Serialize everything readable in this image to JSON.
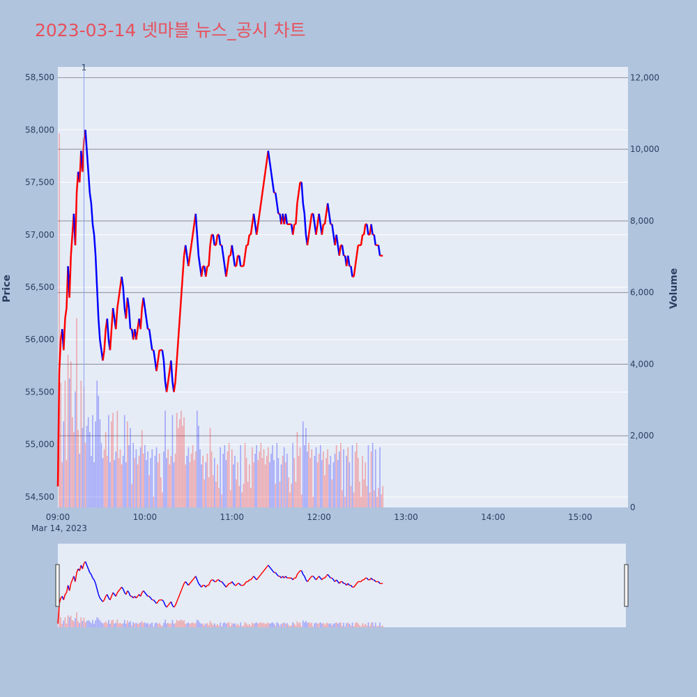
{
  "title": "2023-03-14 넷마블 뉴스_공시 차트",
  "colors": {
    "up": "#ff0000",
    "down": "#0000ff",
    "plot_bg": "#e5ecf6",
    "page_bg": "#b0c4de",
    "title": "#e8505b"
  },
  "chart_data": {
    "type": "line",
    "title": "2023-03-14 넷마블 뉴스_공시 차트",
    "ylabel": "Price",
    "y2label": "Volume",
    "date_label": "Mar 14, 2023",
    "x_ticks": [
      "09:00",
      "10:00",
      "11:00",
      "12:00",
      "13:00",
      "14:00",
      "15:00"
    ],
    "x_range": [
      "09:00",
      "15:33"
    ],
    "y_ticks": [
      "54,500",
      "55,000",
      "55,500",
      "56,000",
      "56,500",
      "57,000",
      "57,500",
      "58,000",
      "58,500"
    ],
    "y_tick_values": [
      54500,
      55000,
      55500,
      56000,
      56500,
      57000,
      57500,
      58000,
      58500
    ],
    "ylim": [
      54400,
      58600
    ],
    "y2_ticks": [
      "0",
      "2,000",
      "4,000",
      "6,000",
      "8,000",
      "10,000",
      "12,000"
    ],
    "y2_tick_values": [
      0,
      2000,
      4000,
      6000,
      8000,
      10000,
      12000
    ],
    "y2lim": [
      0,
      12300
    ],
    "annotation": {
      "label": "1",
      "time": "09:18"
    },
    "price_series": [
      [
        "09:00",
        54600
      ],
      [
        "09:01",
        55700
      ],
      [
        "09:02",
        56000
      ],
      [
        "09:03",
        56100
      ],
      [
        "09:04",
        55900
      ],
      [
        "09:05",
        56200
      ],
      [
        "09:06",
        56300
      ],
      [
        "09:07",
        56700
      ],
      [
        "09:08",
        56400
      ],
      [
        "09:09",
        56800
      ],
      [
        "09:10",
        57000
      ],
      [
        "09:11",
        57200
      ],
      [
        "09:12",
        56900
      ],
      [
        "09:13",
        57400
      ],
      [
        "09:14",
        57600
      ],
      [
        "09:15",
        57500
      ],
      [
        "09:16",
        57800
      ],
      [
        "09:17",
        57600
      ],
      [
        "09:18",
        57900
      ],
      [
        "09:19",
        58000
      ],
      [
        "09:20",
        57800
      ],
      [
        "09:21",
        57600
      ],
      [
        "09:22",
        57400
      ],
      [
        "09:23",
        57300
      ],
      [
        "09:24",
        57100
      ],
      [
        "09:25",
        57000
      ],
      [
        "09:26",
        56800
      ],
      [
        "09:27",
        56500
      ],
      [
        "09:28",
        56200
      ],
      [
        "09:29",
        56000
      ],
      [
        "09:30",
        55900
      ],
      [
        "09:31",
        55800
      ],
      [
        "09:32",
        55900
      ],
      [
        "09:33",
        56100
      ],
      [
        "09:34",
        56200
      ],
      [
        "09:35",
        56000
      ],
      [
        "09:36",
        55900
      ],
      [
        "09:37",
        56100
      ],
      [
        "09:38",
        56300
      ],
      [
        "09:39",
        56200
      ],
      [
        "09:40",
        56100
      ],
      [
        "09:41",
        56300
      ],
      [
        "09:42",
        56400
      ],
      [
        "09:43",
        56500
      ],
      [
        "09:44",
        56600
      ],
      [
        "09:45",
        56500
      ],
      [
        "09:46",
        56300
      ],
      [
        "09:47",
        56200
      ],
      [
        "09:48",
        56400
      ],
      [
        "09:49",
        56300
      ],
      [
        "09:50",
        56100
      ],
      [
        "09:51",
        56100
      ],
      [
        "09:52",
        56000
      ],
      [
        "09:53",
        56100
      ],
      [
        "09:54",
        56000
      ],
      [
        "09:55",
        56100
      ],
      [
        "09:56",
        56200
      ],
      [
        "09:57",
        56100
      ],
      [
        "09:58",
        56300
      ],
      [
        "09:59",
        56400
      ],
      [
        "10:00",
        56300
      ],
      [
        "10:01",
        56200
      ],
      [
        "10:02",
        56100
      ],
      [
        "10:03",
        56100
      ],
      [
        "10:04",
        56000
      ],
      [
        "10:05",
        55900
      ],
      [
        "10:06",
        55900
      ],
      [
        "10:07",
        55800
      ],
      [
        "10:08",
        55700
      ],
      [
        "10:09",
        55800
      ],
      [
        "10:10",
        55900
      ],
      [
        "10:11",
        55900
      ],
      [
        "10:12",
        55900
      ],
      [
        "10:13",
        55800
      ],
      [
        "10:14",
        55600
      ],
      [
        "10:15",
        55500
      ],
      [
        "10:16",
        55600
      ],
      [
        "10:17",
        55700
      ],
      [
        "10:18",
        55800
      ],
      [
        "10:19",
        55600
      ],
      [
        "10:20",
        55500
      ],
      [
        "10:21",
        55600
      ],
      [
        "10:22",
        55800
      ],
      [
        "10:23",
        56000
      ],
      [
        "10:24",
        56200
      ],
      [
        "10:25",
        56400
      ],
      [
        "10:26",
        56600
      ],
      [
        "10:27",
        56800
      ],
      [
        "10:28",
        56900
      ],
      [
        "10:29",
        56800
      ],
      [
        "10:30",
        56700
      ],
      [
        "10:31",
        56800
      ],
      [
        "10:32",
        56900
      ],
      [
        "10:33",
        57000
      ],
      [
        "10:34",
        57100
      ],
      [
        "10:35",
        57200
      ],
      [
        "10:36",
        57000
      ],
      [
        "10:37",
        56800
      ],
      [
        "10:38",
        56700
      ],
      [
        "10:39",
        56600
      ],
      [
        "10:40",
        56700
      ],
      [
        "10:41",
        56700
      ],
      [
        "10:42",
        56600
      ],
      [
        "10:43",
        56700
      ],
      [
        "10:44",
        56700
      ],
      [
        "10:45",
        56900
      ],
      [
        "10:46",
        57000
      ],
      [
        "10:47",
        57000
      ],
      [
        "10:48",
        56900
      ],
      [
        "10:49",
        56900
      ],
      [
        "10:50",
        57000
      ],
      [
        "10:51",
        57000
      ],
      [
        "10:52",
        56900
      ],
      [
        "10:53",
        56900
      ],
      [
        "10:54",
        56800
      ],
      [
        "10:55",
        56700
      ],
      [
        "10:56",
        56600
      ],
      [
        "10:57",
        56700
      ],
      [
        "10:58",
        56800
      ],
      [
        "10:59",
        56800
      ],
      [
        "11:00",
        56900
      ],
      [
        "11:01",
        56800
      ],
      [
        "11:02",
        56700
      ],
      [
        "11:03",
        56700
      ],
      [
        "11:04",
        56800
      ],
      [
        "11:05",
        56800
      ],
      [
        "11:06",
        56700
      ],
      [
        "11:07",
        56700
      ],
      [
        "11:08",
        56700
      ],
      [
        "11:09",
        56800
      ],
      [
        "11:10",
        56900
      ],
      [
        "11:11",
        56900
      ],
      [
        "11:12",
        57000
      ],
      [
        "11:13",
        57000
      ],
      [
        "11:14",
        57100
      ],
      [
        "11:15",
        57200
      ],
      [
        "11:16",
        57100
      ],
      [
        "11:17",
        57000
      ],
      [
        "11:18",
        57100
      ],
      [
        "11:19",
        57200
      ],
      [
        "11:20",
        57300
      ],
      [
        "11:21",
        57400
      ],
      [
        "11:22",
        57500
      ],
      [
        "11:23",
        57600
      ],
      [
        "11:24",
        57700
      ],
      [
        "11:25",
        57800
      ],
      [
        "11:26",
        57700
      ],
      [
        "11:27",
        57600
      ],
      [
        "11:28",
        57500
      ],
      [
        "11:29",
        57400
      ],
      [
        "11:30",
        57400
      ],
      [
        "11:31",
        57300
      ],
      [
        "11:32",
        57200
      ],
      [
        "11:33",
        57200
      ],
      [
        "11:34",
        57100
      ],
      [
        "11:35",
        57200
      ],
      [
        "11:36",
        57100
      ],
      [
        "11:37",
        57200
      ],
      [
        "11:38",
        57100
      ],
      [
        "11:39",
        57100
      ],
      [
        "11:40",
        57100
      ],
      [
        "11:41",
        57100
      ],
      [
        "11:42",
        57000
      ],
      [
        "11:43",
        57100
      ],
      [
        "11:44",
        57100
      ],
      [
        "11:45",
        57300
      ],
      [
        "11:46",
        57400
      ],
      [
        "11:47",
        57500
      ],
      [
        "11:48",
        57500
      ],
      [
        "11:49",
        57300
      ],
      [
        "11:50",
        57200
      ],
      [
        "11:51",
        57000
      ],
      [
        "11:52",
        56900
      ],
      [
        "11:53",
        57000
      ],
      [
        "11:54",
        57100
      ],
      [
        "11:55",
        57200
      ],
      [
        "11:56",
        57200
      ],
      [
        "11:57",
        57100
      ],
      [
        "11:58",
        57000
      ],
      [
        "11:59",
        57100
      ],
      [
        "12:00",
        57200
      ],
      [
        "12:01",
        57100
      ],
      [
        "12:02",
        57000
      ],
      [
        "12:03",
        57100
      ],
      [
        "12:04",
        57100
      ],
      [
        "12:05",
        57200
      ],
      [
        "12:06",
        57300
      ],
      [
        "12:07",
        57200
      ],
      [
        "12:08",
        57100
      ],
      [
        "12:09",
        57100
      ],
      [
        "12:10",
        57000
      ],
      [
        "12:11",
        56900
      ],
      [
        "12:12",
        57000
      ],
      [
        "12:13",
        56900
      ],
      [
        "12:14",
        56800
      ],
      [
        "12:15",
        56900
      ],
      [
        "12:16",
        56900
      ],
      [
        "12:17",
        56800
      ],
      [
        "12:18",
        56800
      ],
      [
        "12:19",
        56700
      ],
      [
        "12:20",
        56800
      ],
      [
        "12:21",
        56700
      ],
      [
        "12:22",
        56700
      ],
      [
        "12:23",
        56600
      ],
      [
        "12:24",
        56600
      ],
      [
        "12:25",
        56700
      ],
      [
        "12:26",
        56800
      ],
      [
        "12:27",
        56900
      ],
      [
        "12:28",
        56900
      ],
      [
        "12:29",
        56900
      ],
      [
        "12:30",
        57000
      ],
      [
        "12:31",
        57000
      ],
      [
        "12:32",
        57100
      ],
      [
        "12:33",
        57100
      ],
      [
        "12:34",
        57000
      ],
      [
        "12:35",
        57000
      ],
      [
        "12:36",
        57100
      ],
      [
        "12:37",
        57000
      ],
      [
        "12:38",
        57000
      ],
      [
        "12:39",
        56900
      ],
      [
        "12:40",
        56900
      ],
      [
        "12:41",
        56900
      ],
      [
        "12:42",
        56800
      ],
      [
        "12:43",
        56800
      ],
      [
        "12:44",
        56800
      ]
    ],
    "price_series_note_omitted": ""
  }
}
